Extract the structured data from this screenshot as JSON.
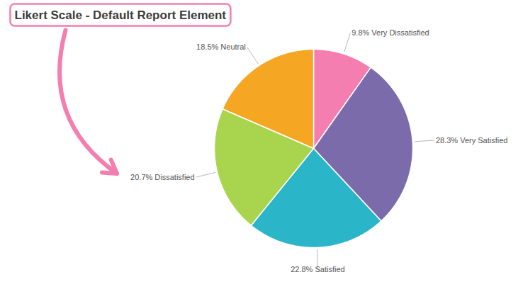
{
  "chart_data": {
    "type": "pie",
    "title": "Likert Scale - Default Report Element",
    "categories": [
      "9.8% Very Dissatisfied",
      "28.3% Very Satisfied",
      "22.8% Satisfied",
      "20.7% Dissatisfied",
      "18.5% Neutral"
    ],
    "values": [
      9.8,
      28.3,
      22.8,
      20.7,
      18.5
    ],
    "colors": [
      "#f47eb0",
      "#7b6baa",
      "#2ab5c8",
      "#a8d44e",
      "#f5a623"
    ]
  }
}
